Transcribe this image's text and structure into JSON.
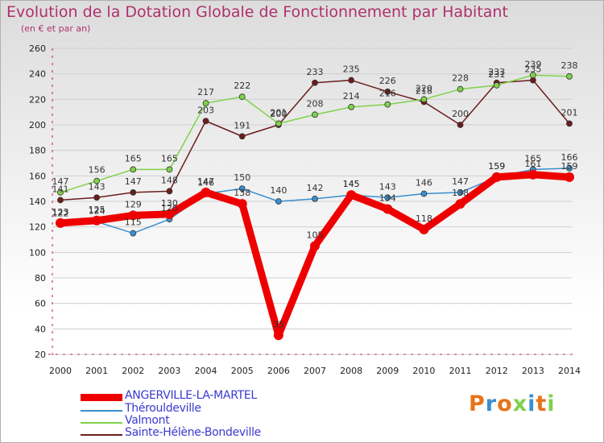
{
  "title": "Evolution de la Dotation Globale de Fonctionnement par Habitant",
  "subtitle": "(en € et par an)",
  "logo": "Proxiti",
  "chart_data": {
    "type": "line",
    "title": "Evolution de la Dotation Globale de Fonctionnement par Habitant",
    "ylabel": "(en € et par an)",
    "xlabel": "",
    "ylim": [
      20,
      260
    ],
    "yticks": [
      20,
      40,
      60,
      80,
      100,
      120,
      140,
      160,
      180,
      200,
      220,
      240,
      260
    ],
    "categories": [
      "2000",
      "2001",
      "2002",
      "2003",
      "2004",
      "2005",
      "2006",
      "2007",
      "2008",
      "2009",
      "2010",
      "2011",
      "2012",
      "2013",
      "2014"
    ],
    "series": [
      {
        "name": "Sainte-Hélène-Bondeville",
        "color": "#6b1d1d",
        "values": [
          141,
          143,
          147,
          148,
          203,
          191,
          200,
          233,
          235,
          226,
          218,
          200,
          233,
          235,
          201
        ]
      },
      {
        "name": "Valmont",
        "color": "#7fd24a",
        "values": [
          147,
          156,
          165,
          165,
          217,
          222,
          201,
          208,
          214,
          216,
          220,
          228,
          231,
          239,
          238
        ]
      },
      {
        "name": "Thérouldeville",
        "color": "#3a8fd0",
        "values": [
          122,
          124,
          115,
          126,
          146,
          150,
          140,
          142,
          145,
          143,
          146,
          147,
          159,
          165,
          166
        ]
      },
      {
        "name": "ANGERVILLE-LA-MARTEL",
        "color": "#ee0000",
        "values": [
          123,
          125,
          129,
          130,
          147,
          138,
          35,
          105,
          145,
          134,
          118,
          138,
          159,
          161,
          159
        ]
      }
    ],
    "legend_position": "bottom-left"
  },
  "legend": [
    {
      "name": "ANGERVILLE-LA-MARTEL",
      "color": "#ee0000"
    },
    {
      "name": "Thérouldeville",
      "color": "#3a8fd0"
    },
    {
      "name": "Valmont",
      "color": "#7fd24a"
    },
    {
      "name": "Sainte-Hélène-Bondeville",
      "color": "#6b1d1d"
    }
  ]
}
